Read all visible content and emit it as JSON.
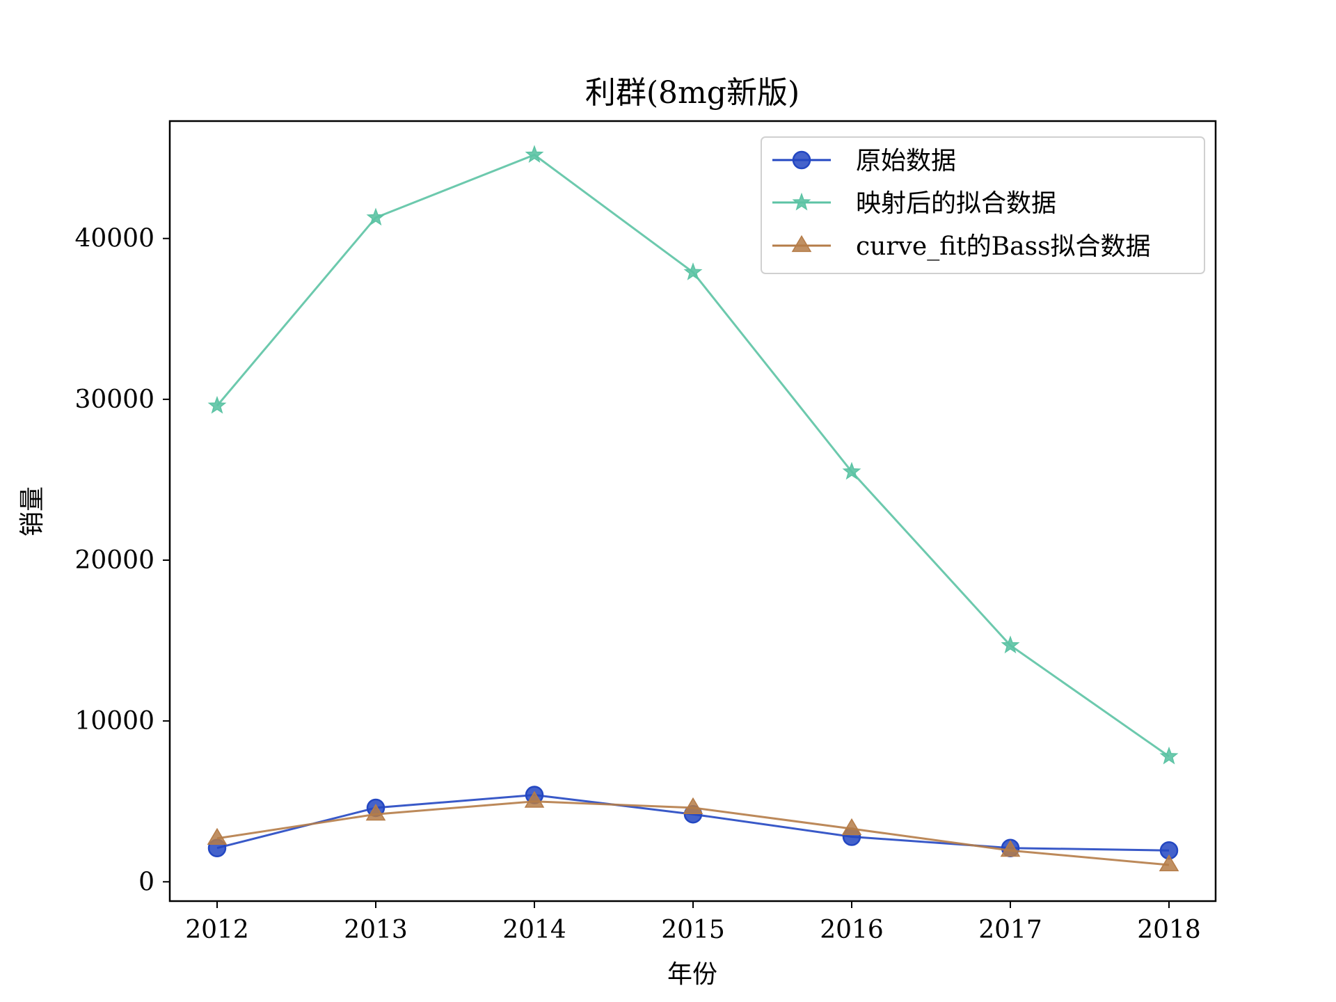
{
  "chart_data": {
    "type": "line",
    "title": "利群(8mg新版)",
    "xlabel": "年份",
    "ylabel": "销量",
    "categories": [
      "2012",
      "2013",
      "2014",
      "2015",
      "2016",
      "2017",
      "2018"
    ],
    "ylim": [
      -1200,
      47300
    ],
    "yticks": [
      0,
      10000,
      20000,
      30000,
      40000
    ],
    "yticklabels": [
      "0",
      "10000",
      "20000",
      "30000",
      "40000"
    ],
    "grid": false,
    "legend_position": "top-right",
    "series": [
      {
        "name": "原始数据",
        "color": "#2347c2",
        "marker": "circle",
        "values": [
          2100,
          4600,
          5400,
          4200,
          2800,
          2100,
          1950
        ]
      },
      {
        "name": "映射后的拟合数据",
        "color": "#5cc3a4",
        "marker": "star",
        "values": [
          29600,
          41300,
          45200,
          37900,
          25500,
          14700,
          7800
        ]
      },
      {
        "name": "curve_fit的Bass拟合数据",
        "color": "#b57c48",
        "marker": "triangle",
        "values": [
          2700,
          4200,
          5000,
          4600,
          3300,
          1950,
          1050
        ]
      }
    ]
  }
}
